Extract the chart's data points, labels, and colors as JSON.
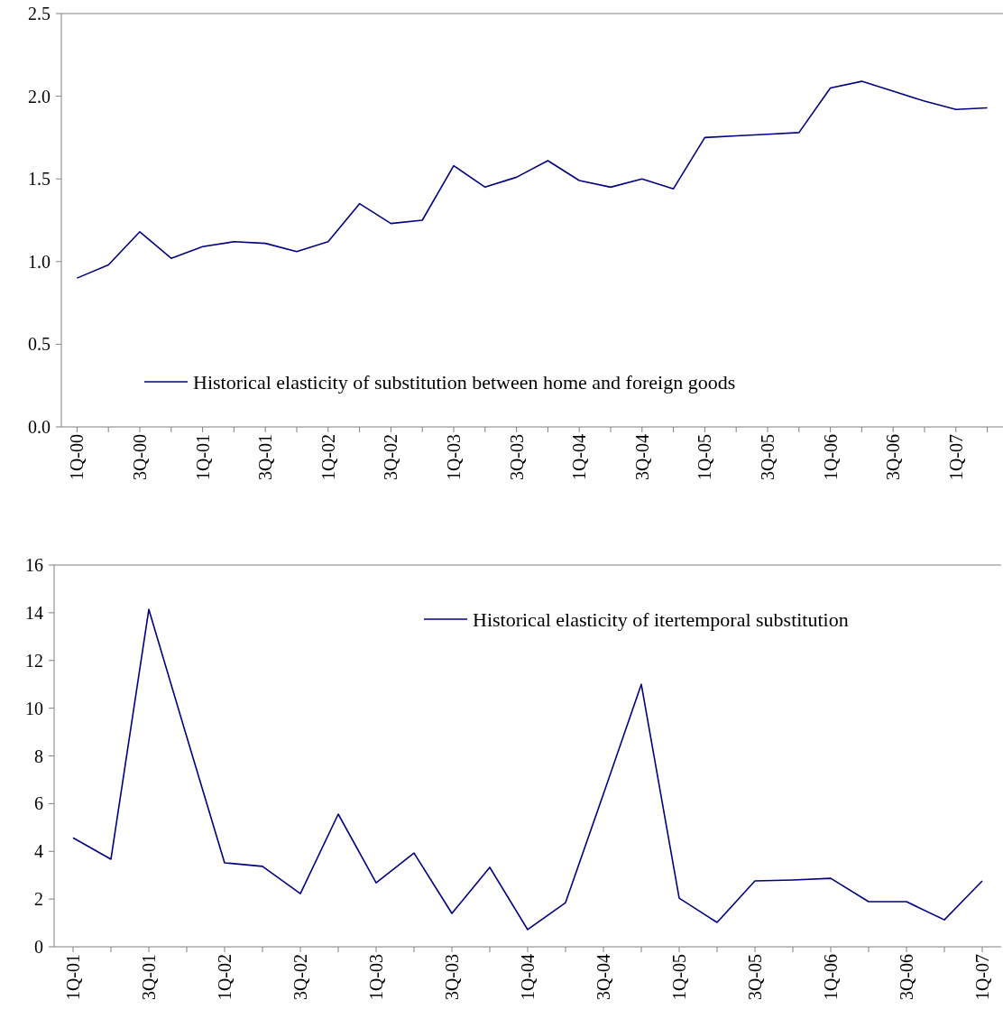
{
  "chart_data": [
    {
      "type": "line",
      "categories": [
        "1Q-00",
        null,
        "3Q-00",
        null,
        "1Q-01",
        null,
        "3Q-01",
        null,
        "1Q-02",
        null,
        "3Q-02",
        null,
        "1Q-03",
        null,
        "3Q-03",
        null,
        "1Q-04",
        null,
        "3Q-04",
        null,
        "1Q-05",
        null,
        "3Q-05",
        null,
        "1Q-06",
        null,
        "3Q-06",
        null,
        "1Q-07",
        null
      ],
      "series": [
        {
          "name": "Historical elasticity of substitution between home and foreign goods",
          "color": "#000080",
          "values": [
            0.9,
            0.98,
            1.18,
            1.02,
            1.09,
            1.12,
            1.11,
            1.06,
            1.12,
            1.35,
            1.23,
            1.25,
            1.58,
            1.45,
            1.51,
            1.61,
            1.49,
            1.45,
            1.5,
            1.44,
            1.75,
            1.76,
            1.77,
            1.78,
            2.05,
            2.09,
            2.03,
            1.97,
            1.92,
            1.93
          ]
        }
      ],
      "ylim": [
        0,
        2.5
      ],
      "yticks": [
        {
          "value": 0,
          "label": "0.0"
        },
        0.5,
        {
          "value": 1,
          "label": "1.0"
        },
        1.5,
        {
          "value": 2,
          "label": "2.0"
        },
        2.5
      ],
      "grid": false,
      "legend": "bottom",
      "marker": "none",
      "line_style": "solid"
    },
    {
      "type": "line",
      "categories": [
        "1Q-01",
        null,
        "3Q-01",
        null,
        "1Q-02",
        null,
        "3Q-02",
        null,
        "1Q-03",
        null,
        "3Q-03",
        null,
        "1Q-04",
        null,
        "3Q-04",
        null,
        "1Q-05",
        null,
        "3Q-05",
        null,
        "1Q-06",
        null,
        "3Q-06",
        null,
        "1Q-07"
      ],
      "series": [
        {
          "name": "Historical elasticity of itertemporal substitution",
          "color": "#000080",
          "values": [
            4.57,
            3.67,
            14.14,
            8.8,
            3.52,
            3.37,
            2.23,
            5.56,
            2.68,
            3.93,
            1.4,
            3.33,
            0.72,
            1.85,
            6.4,
            11.0,
            2.04,
            1.02,
            2.76,
            2.8,
            2.87,
            1.89,
            1.89,
            1.13,
            2.76
          ]
        }
      ],
      "ylim": [
        0,
        16
      ],
      "yticks": [
        0,
        2,
        4,
        6,
        8,
        10,
        12,
        14,
        16
      ],
      "grid": false,
      "legend": "top right",
      "marker": "none",
      "line_style": "solid"
    }
  ]
}
